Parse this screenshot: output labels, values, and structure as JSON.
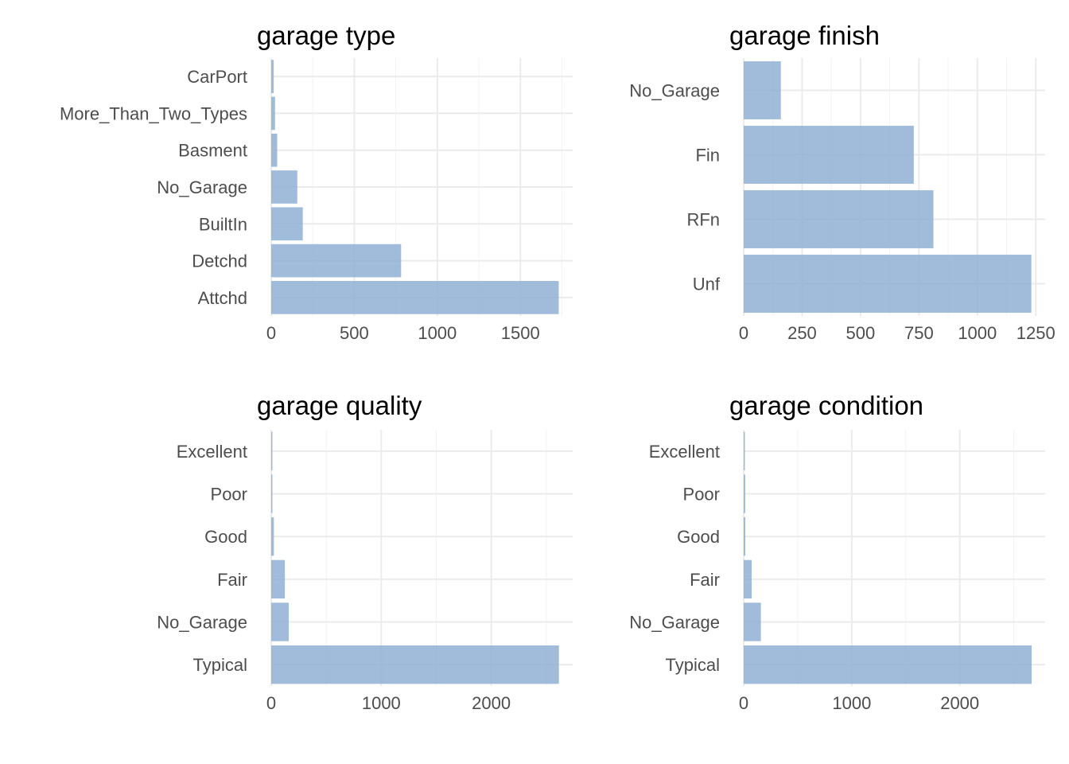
{
  "chart_data": [
    {
      "type": "bar",
      "orientation": "horizontal",
      "title": "garage type",
      "categories": [
        "CarPort",
        "More_Than_Two_Types",
        "Basment",
        "No_Garage",
        "BuiltIn",
        "Detchd",
        "Attchd"
      ],
      "values": [
        15,
        23,
        36,
        157,
        190,
        782,
        1731
      ],
      "xlim": [
        0,
        1815
      ],
      "xticks": [
        0,
        500,
        1000,
        1500
      ],
      "xtick_labels": [
        "0",
        "500",
        "1000",
        "1500"
      ],
      "grid": true,
      "bar_color": "#8fb0d3"
    },
    {
      "type": "bar",
      "orientation": "horizontal",
      "title": "garage finish",
      "categories": [
        "No_Garage",
        "Fin",
        "RFn",
        "Unf"
      ],
      "values": [
        159,
        728,
        812,
        1231
      ],
      "xlim": [
        0,
        1290
      ],
      "xticks": [
        0,
        250,
        500,
        750,
        1000,
        1250
      ],
      "xtick_labels": [
        "0",
        "250",
        "500",
        "750",
        "1000",
        "1250"
      ],
      "grid": true,
      "bar_color": "#8fb0d3"
    },
    {
      "type": "bar",
      "orientation": "horizontal",
      "title": "garage quality",
      "categories": [
        "Excellent",
        "Poor",
        "Good",
        "Fair",
        "No_Garage",
        "Typical"
      ],
      "values": [
        3,
        5,
        24,
        124,
        159,
        2615
      ],
      "xlim": [
        0,
        2740
      ],
      "xticks": [
        0,
        1000,
        2000
      ],
      "xtick_labels": [
        "0",
        "1000",
        "2000"
      ],
      "grid": true,
      "bar_color": "#8fb0d3"
    },
    {
      "type": "bar",
      "orientation": "horizontal",
      "title": "garage condition",
      "categories": [
        "Excellent",
        "Poor",
        "Good",
        "Fair",
        "No_Garage",
        "Typical"
      ],
      "values": [
        3,
        14,
        15,
        74,
        159,
        2665
      ],
      "xlim": [
        0,
        2790
      ],
      "xticks": [
        0,
        1000,
        2000
      ],
      "xtick_labels": [
        "0",
        "1000",
        "2000"
      ],
      "grid": true,
      "bar_color": "#8fb0d3"
    }
  ]
}
